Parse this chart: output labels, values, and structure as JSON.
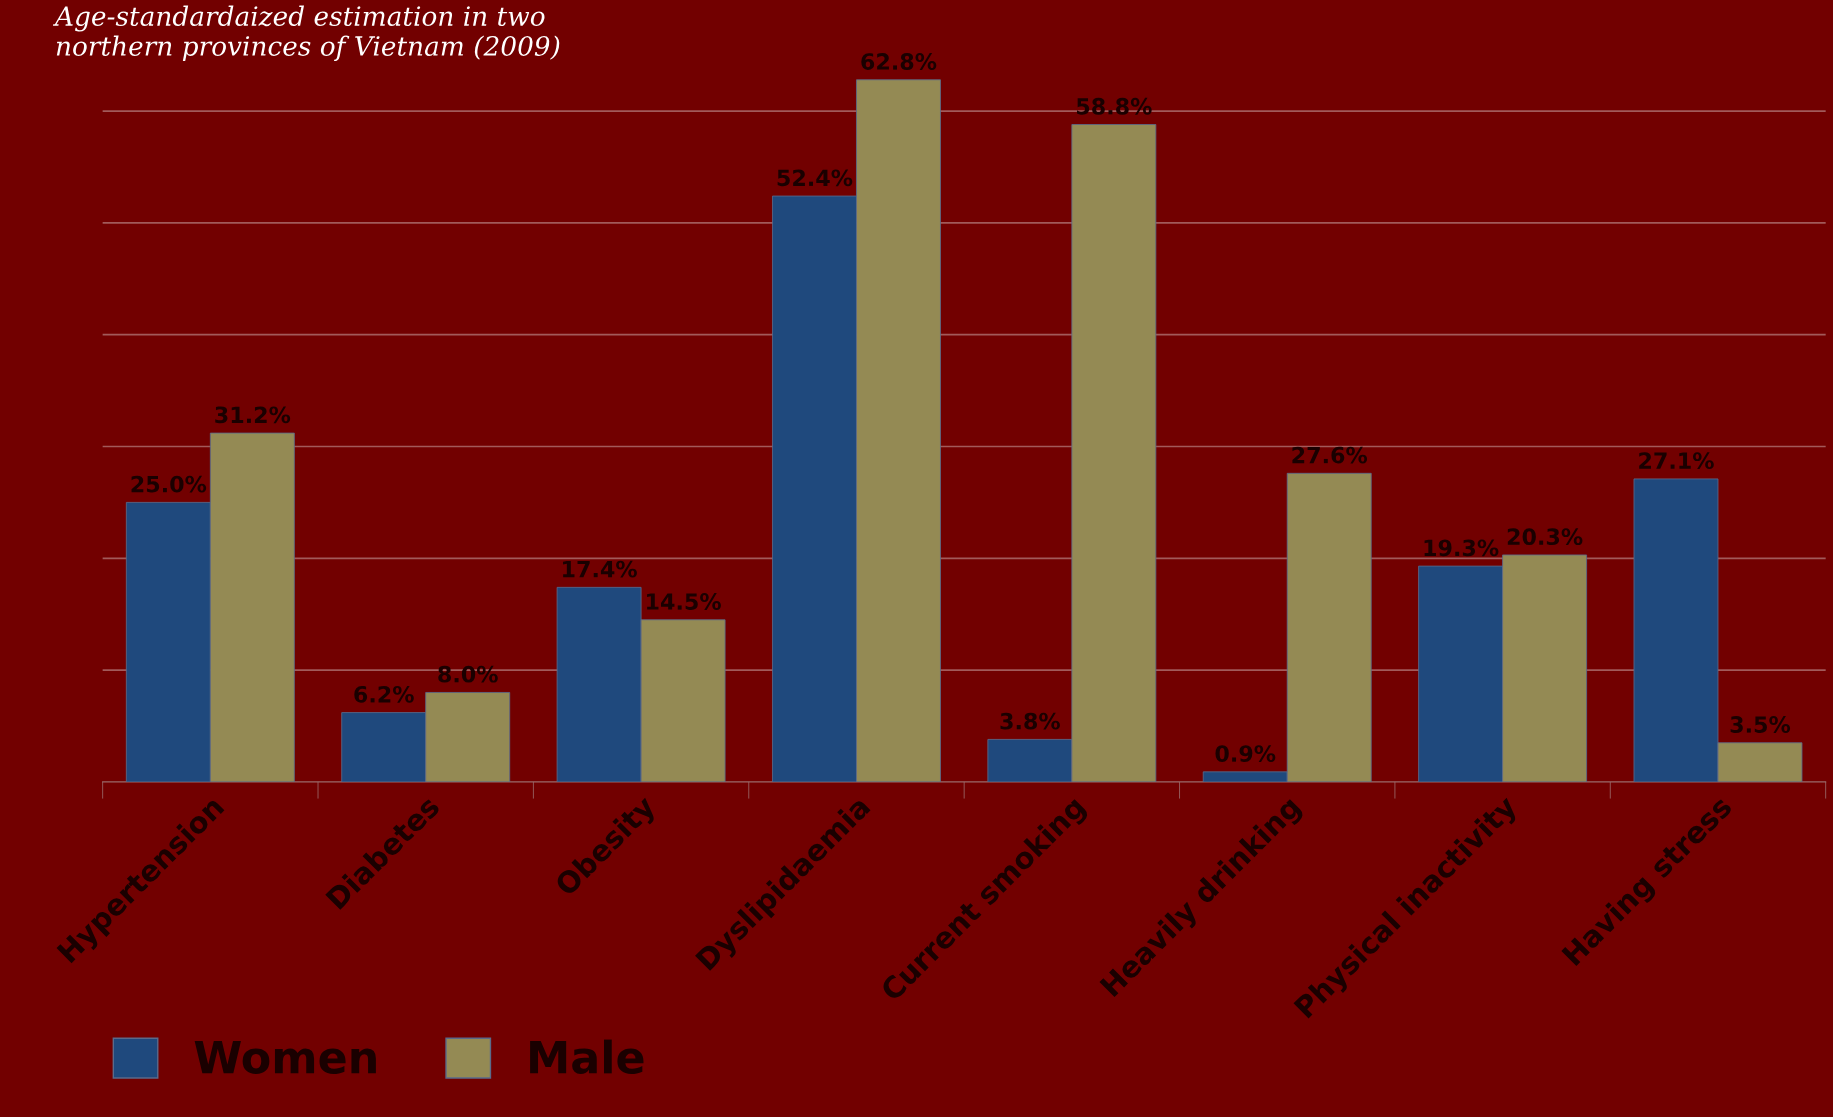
{
  "chart_data": {
    "type": "bar",
    "title": "Age-standardaized estimation in two\nnorthern provinces of Vietnam (2009)",
    "categories": [
      "Hypertension",
      "Diabetes",
      "Obesity",
      "Dyslipidaemia",
      "Current smoking",
      "Heavily drinking",
      "Physical inactivity",
      "Having stress"
    ],
    "series": [
      {
        "name": "Women",
        "color": "#1f497d",
        "values": [
          25.0,
          6.2,
          17.4,
          52.4,
          3.8,
          0.9,
          19.3,
          27.1
        ],
        "value_labels": [
          "25.0%",
          "6.2%",
          "17.4%",
          "52.4%",
          "3.8%",
          "0.9%",
          "19.3%",
          "27.1%"
        ]
      },
      {
        "name": "Male",
        "color": "#948a54",
        "values": [
          31.2,
          8.0,
          14.5,
          62.8,
          58.8,
          27.6,
          20.3,
          3.5
        ],
        "value_labels": [
          "31.2%",
          "8.0%",
          "14.5%",
          "62.8%",
          "58.8%",
          "27.6%",
          "20.3%",
          "3.5%"
        ]
      }
    ],
    "ref_lines": [
      {
        "axis": "y",
        "value": 10,
        "color": "#a25a5a"
      },
      {
        "axis": "y",
        "value": 20,
        "color": "#a25a5a"
      },
      {
        "axis": "y",
        "value": 30,
        "color": "#a25a5a"
      },
      {
        "axis": "y",
        "value": 40,
        "color": "#a25a5a"
      },
      {
        "axis": "y",
        "value": 50,
        "color": "#a25a5a"
      },
      {
        "axis": "y",
        "value": 60,
        "color": "#a25a5a"
      }
    ],
    "legend": "bottom left",
    "tick_labels": "x"
  }
}
